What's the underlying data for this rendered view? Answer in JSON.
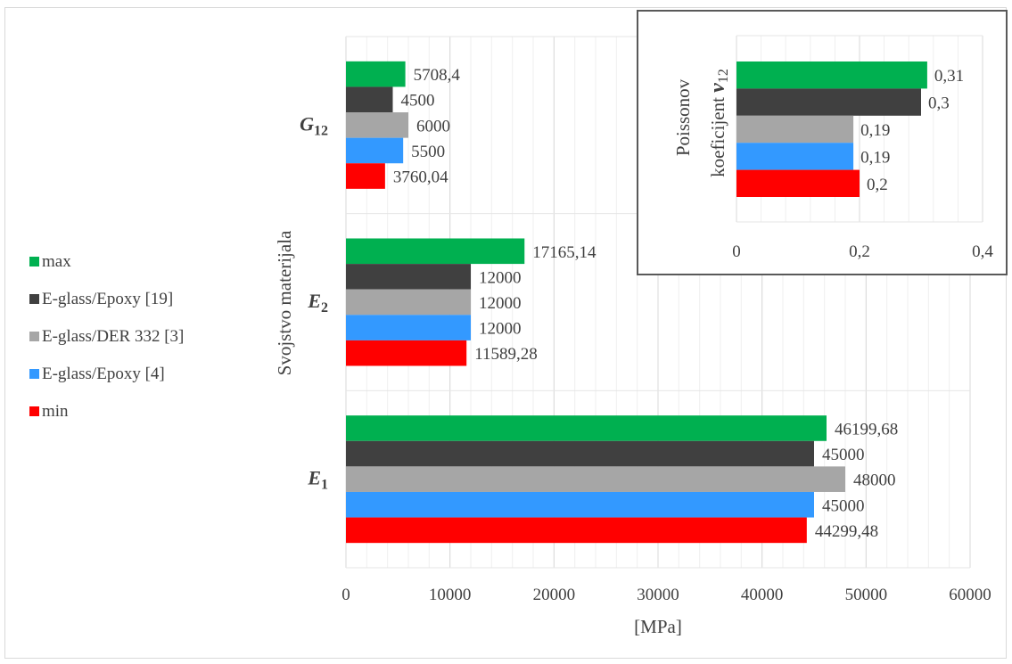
{
  "legend": {
    "items": [
      {
        "label": "max",
        "color": "#00b050"
      },
      {
        "label": "E-glass/Epoxy [19]",
        "color": "#404040"
      },
      {
        "label": "E-glass/DER 332 [3]",
        "color": "#a6a6a6"
      },
      {
        "label": "E-glass/Epoxy [4]",
        "color": "#3399ff"
      },
      {
        "label": "min",
        "color": "#ff0000"
      }
    ]
  },
  "chart_data": [
    {
      "type": "bar",
      "orientation": "horizontal",
      "categories": [
        "G12",
        "E2",
        "E1"
      ],
      "category_labels": [
        {
          "main": "G",
          "sub": "12"
        },
        {
          "main": "E",
          "sub": "2"
        },
        {
          "main": "E",
          "sub": "1"
        }
      ],
      "series": [
        {
          "name": "max",
          "color": "#00b050",
          "values": [
            5708.4,
            17165.14,
            46199.68
          ],
          "labels": [
            "5708,4",
            "17165,14",
            "46199,68"
          ]
        },
        {
          "name": "E-glass/Epoxy [19]",
          "color": "#404040",
          "values": [
            4500,
            12000,
            45000
          ],
          "labels": [
            "4500",
            "12000",
            "45000"
          ]
        },
        {
          "name": "E-glass/DER 332 [3]",
          "color": "#a6a6a6",
          "values": [
            6000,
            12000,
            48000
          ],
          "labels": [
            "6000",
            "12000",
            "48000"
          ]
        },
        {
          "name": "E-glass/Epoxy [4]",
          "color": "#3399ff",
          "values": [
            5500,
            12000,
            45000
          ],
          "labels": [
            "5500",
            "12000",
            "45000"
          ]
        },
        {
          "name": "min",
          "color": "#ff0000",
          "values": [
            3760.04,
            11589.28,
            44299.48
          ],
          "labels": [
            "3760,04",
            "11589,28",
            "44299,48"
          ]
        }
      ],
      "xlim": [
        0,
        60000
      ],
      "xticks": [
        0,
        10000,
        20000,
        30000,
        40000,
        50000,
        60000
      ],
      "xtick_labels": [
        "0",
        "10000",
        "20000",
        "30000",
        "40000",
        "50000",
        "60000"
      ],
      "xlabel": "[MPa]",
      "ylabel": "Svojstvo materijala",
      "grid": true
    },
    {
      "type": "bar",
      "orientation": "horizontal",
      "ylabel_line1": "Poissonov",
      "ylabel_line2_text": "koeficijent ",
      "ylabel_line2_symbol": "ν",
      "ylabel_line2_sub": "12",
      "series": [
        {
          "name": "max",
          "color": "#00b050",
          "value": 0.31,
          "label": "0,31"
        },
        {
          "name": "E-glass/Epoxy [19]",
          "color": "#404040",
          "value": 0.3,
          "label": "0,3"
        },
        {
          "name": "E-glass/DER 332 [3]",
          "color": "#a6a6a6",
          "value": 0.19,
          "label": "0,19"
        },
        {
          "name": "E-glass/Epoxy [4]",
          "color": "#3399ff",
          "value": 0.19,
          "label": "0,19"
        },
        {
          "name": "min",
          "color": "#ff0000",
          "value": 0.2,
          "label": "0,2"
        }
      ],
      "xlim": [
        0,
        0.4
      ],
      "xticks": [
        0,
        0.2,
        0.4
      ],
      "xtick_labels": [
        "0",
        "0,2",
        "0,4"
      ],
      "grid": true
    }
  ]
}
